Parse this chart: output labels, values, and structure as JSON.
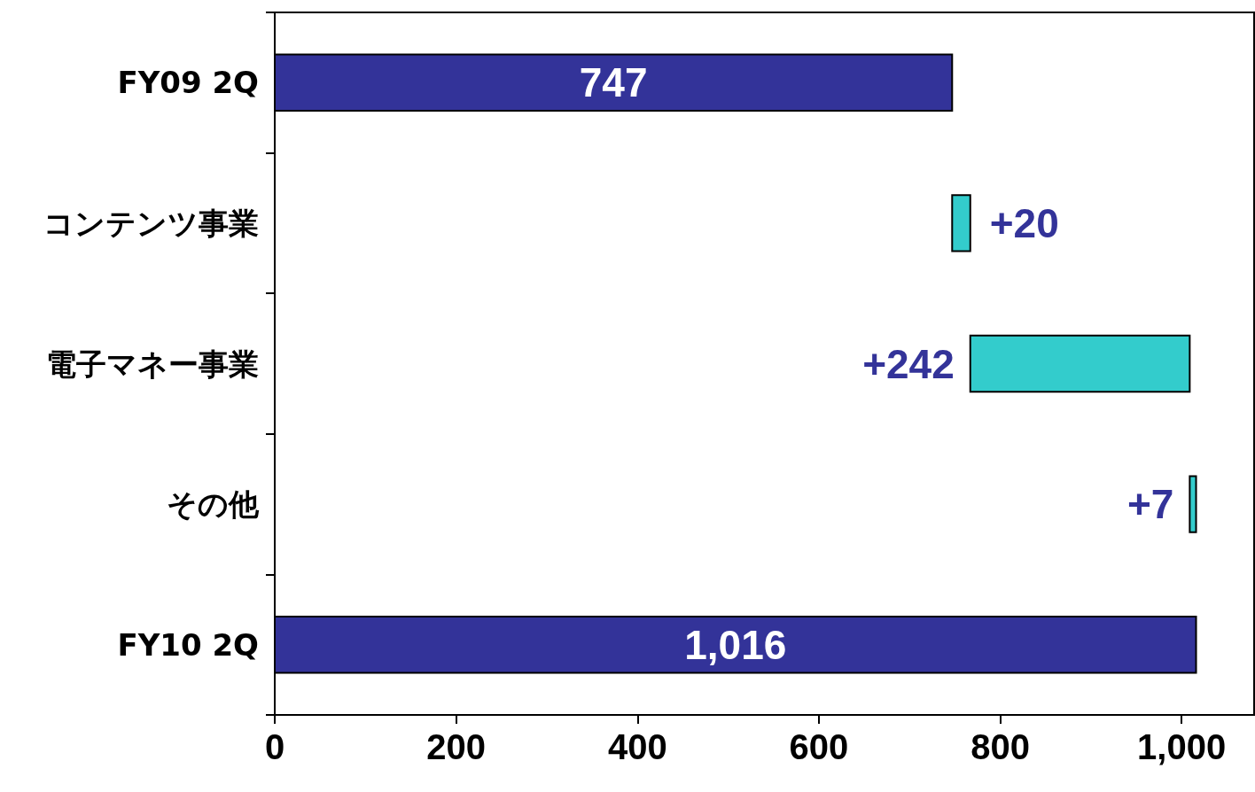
{
  "chart_data": {
    "type": "bar",
    "orientation": "horizontal",
    "categories": [
      "FY09 2Q",
      "コンテンツ事業",
      "電子マネー事業",
      "その他",
      "FY10 2Q"
    ],
    "values": [
      747,
      20,
      242,
      7,
      1016
    ],
    "base": [
      0,
      747,
      767,
      1009,
      0
    ],
    "colors": [
      "#333399",
      "#33cccc",
      "#33cccc",
      "#33cccc",
      "#333399"
    ],
    "value_labels": [
      "747",
      "+20",
      "+242",
      "+7",
      "1,016"
    ],
    "xlim": [
      0,
      1080
    ],
    "xticks": [
      0,
      200,
      400,
      600,
      800,
      {
        "value": 1000,
        "label": "1,000"
      }
    ],
    "grid": false
  }
}
